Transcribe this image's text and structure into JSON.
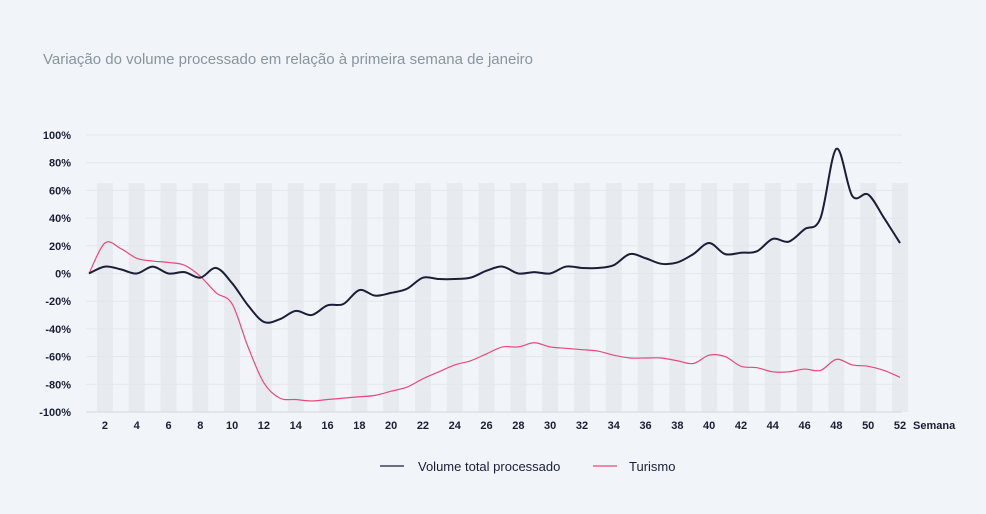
{
  "chart_data": {
    "type": "line",
    "title": "Variação do volume processado em relação à primeira semana de janeiro",
    "xlabel": "Semana",
    "ylabel": "",
    "xlim": [
      1,
      52
    ],
    "ylim": [
      -100,
      100
    ],
    "grid": true,
    "legend_position": "bottom",
    "y_ticks": [
      "100%",
      "80%",
      "60%",
      "40%",
      "20%",
      "0%",
      "-20%",
      "-40%",
      "-60%",
      "-80%",
      "-100%"
    ],
    "y_tick_values": [
      100,
      80,
      60,
      40,
      20,
      0,
      -20,
      -40,
      -60,
      -80,
      -100
    ],
    "x_ticks": [
      "2",
      "4",
      "6",
      "8",
      "10",
      "12",
      "14",
      "16",
      "18",
      "20",
      "22",
      "24",
      "26",
      "28",
      "30",
      "32",
      "34",
      "36",
      "38",
      "40",
      "42",
      "44",
      "46",
      "48",
      "50",
      "52"
    ],
    "x_tick_values": [
      2,
      4,
      6,
      8,
      10,
      12,
      14,
      16,
      18,
      20,
      22,
      24,
      26,
      28,
      30,
      32,
      34,
      36,
      38,
      40,
      42,
      44,
      46,
      48,
      50,
      52
    ],
    "x": [
      1,
      2,
      3,
      4,
      5,
      6,
      7,
      8,
      9,
      10,
      11,
      12,
      13,
      14,
      15,
      16,
      17,
      18,
      19,
      20,
      21,
      22,
      23,
      24,
      25,
      26,
      27,
      28,
      29,
      30,
      31,
      32,
      33,
      34,
      35,
      36,
      37,
      38,
      39,
      40,
      41,
      42,
      43,
      44,
      45,
      46,
      47,
      48,
      49,
      50,
      51,
      52
    ],
    "series": [
      {
        "name": "Volume total processado",
        "color": "#1a1f36",
        "values": [
          0,
          5,
          3,
          0,
          5,
          0,
          1,
          -3,
          4,
          -7,
          -23,
          -35,
          -33,
          -27,
          -30,
          -23,
          -22,
          -12,
          -16,
          -14,
          -11,
          -3,
          -4,
          -4,
          -3,
          2,
          5,
          0,
          1,
          0,
          5,
          4,
          4,
          6,
          14,
          11,
          7,
          8,
          14,
          22,
          14,
          15,
          16,
          25,
          23,
          32,
          40,
          90,
          56,
          57,
          40,
          22
        ]
      },
      {
        "name": "Turismo",
        "color": "#e8497a",
        "values": [
          0,
          22,
          18,
          11,
          9,
          8,
          6,
          -2,
          -14,
          -22,
          -53,
          -79,
          -90,
          -91,
          -92,
          -91,
          -90,
          -89,
          -88,
          -85,
          -82,
          -76,
          -71,
          -66,
          -63,
          -58,
          -53,
          -53,
          -50,
          -53,
          -54,
          -55,
          -56,
          -59,
          -61,
          -61,
          -61,
          -63,
          -65,
          -59,
          -60,
          -67,
          -68,
          -71,
          -71,
          -69,
          -70,
          -62,
          -66,
          -67,
          -70,
          -75
        ]
      }
    ]
  }
}
